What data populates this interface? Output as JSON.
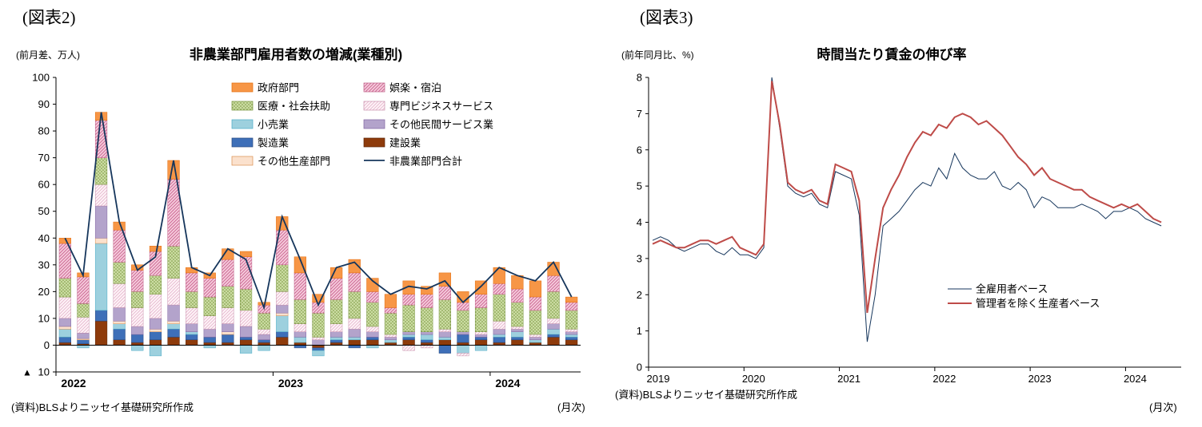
{
  "figure2": {
    "label": "(図表2)",
    "unit_label": "(前月差、万人)",
    "title": "非農業部門雇用者数の増減(業種別)",
    "source": "(資料)BLSよりニッセイ基礎研究所作成",
    "frequency_label": "(月次)"
  },
  "figure3": {
    "label": "(図表3)",
    "unit_label": "(前年同月比、%)",
    "title": "時間当たり賃金の伸び率",
    "source": "(資料)BLSよりニッセイ基礎研究所作成",
    "frequency_label": "(月次)"
  },
  "chart_data": [
    {
      "type": "bar",
      "stacked": true,
      "title": "非農業部門雇用者数の増減(業種別)",
      "ylabel": "(前月差、万人)",
      "ylim": [
        -10,
        100
      ],
      "y_ticks": [
        100,
        90,
        80,
        70,
        60,
        50,
        40,
        30,
        20,
        10,
        0,
        -10
      ],
      "negative_marker": "▲",
      "x_start": "2022-01",
      "frequency": "monthly",
      "x_tick_labels": [
        "2022",
        "2023",
        "2024"
      ],
      "x_tick_month_indices": [
        0,
        12,
        24
      ],
      "series": [
        {
          "name": "建設業",
          "color": "#8E3B0B",
          "border": "#5C2506",
          "values": [
            1,
            0.5,
            9,
            2,
            1,
            2,
            3,
            2,
            1,
            1,
            2,
            1,
            3,
            1,
            -1,
            1,
            2,
            2,
            1,
            2,
            1,
            2,
            1,
            2,
            1,
            2,
            1,
            3,
            2
          ]
        },
        {
          "name": "製造業",
          "color": "#3E6FB8",
          "border": "#28497E",
          "values": [
            2,
            1.5,
            4,
            4,
            3,
            3,
            3,
            2,
            2,
            3,
            1,
            1,
            2,
            -1,
            -1,
            1,
            -1,
            1,
            0,
            1,
            1,
            -3,
            3,
            1,
            2,
            1,
            0,
            1,
            1
          ]
        },
        {
          "name": "小売業",
          "color": "#9DD0DE",
          "border": "#4BACC6",
          "values": [
            3,
            -1,
            25,
            2,
            -2,
            -4,
            2,
            1,
            -1,
            0,
            -3,
            -2,
            6,
            2,
            -2,
            1,
            1,
            -1,
            1,
            1,
            2,
            1,
            -3,
            -2,
            1,
            2,
            1,
            2,
            1
          ]
        },
        {
          "name": "その他生産部門",
          "color": "#FBE1CD",
          "border": "#D98E4F",
          "values": [
            1,
            0.5,
            2,
            1,
            0,
            1,
            1,
            0,
            0,
            1,
            0,
            0,
            1,
            0,
            0,
            0,
            0,
            0,
            0,
            0,
            0,
            0,
            0,
            0,
            0,
            0,
            0,
            0,
            0
          ]
        },
        {
          "name": "その他民間サービス業",
          "color": "#B3A3CB",
          "border": "#8064A2",
          "values": [
            3,
            2,
            12,
            5,
            3,
            4,
            6,
            3,
            3,
            3,
            4,
            2,
            3,
            2,
            2,
            2,
            3,
            2,
            1,
            1,
            1,
            2,
            1,
            1,
            2,
            1,
            1,
            2,
            1
          ]
        },
        {
          "name": "専門ビジネスサービス",
          "color": "#FDF3F7",
          "hatch": "diag-light",
          "hatch_color": "#E1A8C4",
          "border": "#C993AE",
          "values": [
            8,
            6,
            8,
            9,
            7,
            9,
            10,
            6,
            5,
            6,
            6,
            2,
            5,
            3,
            1,
            3,
            4,
            2,
            1,
            -2,
            -1,
            1,
            -1,
            1,
            3,
            1,
            1,
            2,
            1
          ]
        },
        {
          "name": "医療・社会扶助",
          "color": "#CBDCA2",
          "hatch": "dots",
          "hatch_color": "#76933C",
          "border": "#76933C",
          "values": [
            7,
            5,
            10,
            8,
            6,
            7,
            12,
            6,
            7,
            8,
            8,
            6,
            10,
            9,
            9,
            9,
            10,
            9,
            8,
            10,
            9,
            11,
            8,
            9,
            10,
            9,
            9,
            10,
            7
          ]
        },
        {
          "name": "娯楽・宿泊",
          "color": "#F7CFDF",
          "hatch": "diag",
          "hatch_color": "#CE6D96",
          "border": "#BE5E86",
          "values": [
            13,
            10,
            14,
            12,
            8,
            9,
            25,
            7,
            7,
            10,
            12,
            3,
            13,
            10,
            4,
            8,
            7,
            4,
            2,
            4,
            5,
            5,
            3,
            5,
            4,
            5,
            5,
            6,
            3
          ]
        },
        {
          "name": "政府部門",
          "color": "#F79646",
          "border": "#E36C0A",
          "values": [
            2,
            1.5,
            3,
            3,
            2,
            2,
            7,
            2,
            2,
            4,
            2,
            1,
            5,
            6,
            3,
            4,
            5,
            5,
            5,
            5,
            3,
            5,
            4,
            5,
            6,
            5,
            6,
            5,
            2
          ]
        }
      ],
      "line_series": {
        "name": "非農業部門合計",
        "color": "#16365C",
        "values": [
          40,
          26,
          87,
          46,
          28,
          33,
          69,
          29,
          26,
          36,
          32,
          14,
          48,
          32,
          15,
          29,
          31,
          24,
          19,
          22,
          21,
          24,
          16,
          22,
          29,
          26,
          24,
          31,
          18
        ]
      },
      "legend_columns": [
        [
          "政府部門",
          "医療・社会扶助",
          "小売業",
          "製造業",
          "その他生産部門"
        ],
        [
          "娯楽・宿泊",
          "専門ビジネスサービス",
          "その他民間サービス業",
          "建設業",
          "非農業部門合計"
        ]
      ]
    },
    {
      "type": "line",
      "title": "時間当たり賃金の伸び率",
      "ylabel": "(前年同月比、%)",
      "ylim": [
        0,
        8
      ],
      "y_ticks": [
        8,
        7,
        6,
        5,
        4,
        3,
        2,
        1,
        0
      ],
      "x_start": "2019-01",
      "frequency": "monthly",
      "x_tick_labels": [
        "2019",
        "2020",
        "2021",
        "2022",
        "2023",
        "2024"
      ],
      "x_tick_month_indices": [
        0,
        12,
        24,
        36,
        48,
        60
      ],
      "x_axis_slots": 67,
      "legend_position": "center-right",
      "series": [
        {
          "name": "全雇用者ベース",
          "color": "#16365C",
          "width": 1,
          "values": [
            3.5,
            3.6,
            3.5,
            3.3,
            3.2,
            3.3,
            3.4,
            3.4,
            3.2,
            3.1,
            3.3,
            3.1,
            3.1,
            3.0,
            3.3,
            8.0,
            6.6,
            5.0,
            4.8,
            4.7,
            4.8,
            4.5,
            4.4,
            5.4,
            5.3,
            5.2,
            4.2,
            0.7,
            2.0,
            3.9,
            4.1,
            4.3,
            4.6,
            4.9,
            5.1,
            5.0,
            5.5,
            5.2,
            5.9,
            5.5,
            5.3,
            5.2,
            5.2,
            5.4,
            5.0,
            4.9,
            5.1,
            4.9,
            4.4,
            4.7,
            4.6,
            4.4,
            4.4,
            4.4,
            4.5,
            4.4,
            4.3,
            4.1,
            4.3,
            4.3,
            4.4,
            4.3,
            4.1,
            4.0,
            3.9
          ]
        },
        {
          "name": "管理者を除く生産者ベース",
          "color": "#BE4B48",
          "width": 2,
          "values": [
            3.4,
            3.5,
            3.4,
            3.3,
            3.3,
            3.4,
            3.5,
            3.5,
            3.4,
            3.5,
            3.6,
            3.3,
            3.2,
            3.1,
            3.4,
            7.9,
            6.7,
            5.1,
            4.9,
            4.8,
            4.9,
            4.6,
            4.5,
            5.6,
            5.5,
            5.4,
            4.6,
            1.5,
            3.0,
            4.4,
            4.9,
            5.3,
            5.8,
            6.2,
            6.5,
            6.4,
            6.7,
            6.6,
            6.9,
            7.0,
            6.9,
            6.7,
            6.8,
            6.6,
            6.4,
            6.1,
            5.8,
            5.6,
            5.3,
            5.5,
            5.2,
            5.1,
            5.0,
            4.9,
            4.9,
            4.7,
            4.6,
            4.5,
            4.4,
            4.5,
            4.4,
            4.5,
            4.3,
            4.1,
            4.0
          ]
        }
      ]
    }
  ]
}
